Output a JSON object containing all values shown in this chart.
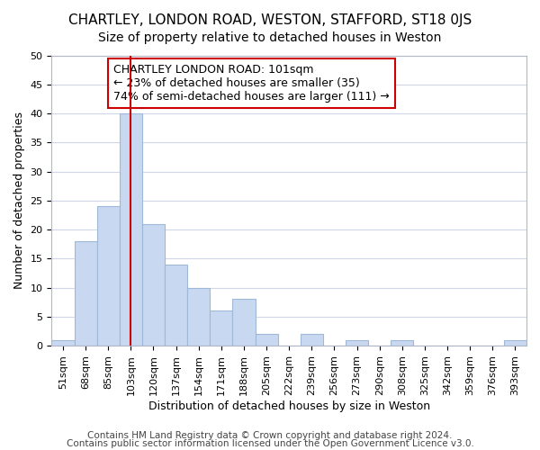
{
  "title": "CHARTLEY, LONDON ROAD, WESTON, STAFFORD, ST18 0JS",
  "subtitle": "Size of property relative to detached houses in Weston",
  "xlabel": "Distribution of detached houses by size in Weston",
  "ylabel": "Number of detached properties",
  "categories": [
    "51sqm",
    "68sqm",
    "85sqm",
    "103sqm",
    "120sqm",
    "137sqm",
    "154sqm",
    "171sqm",
    "188sqm",
    "205sqm",
    "222sqm",
    "239sqm",
    "256sqm",
    "273sqm",
    "290sqm",
    "308sqm",
    "325sqm",
    "342sqm",
    "359sqm",
    "376sqm",
    "393sqm"
  ],
  "values": [
    1,
    18,
    24,
    40,
    21,
    14,
    10,
    6,
    8,
    2,
    0,
    2,
    0,
    1,
    0,
    1,
    0,
    0,
    0,
    0,
    1
  ],
  "bar_color": "#c8d8f0",
  "bar_edge_color": "#a0b8d8",
  "vline_x": 3,
  "vline_color": "#cc0000",
  "ylim": [
    0,
    50
  ],
  "yticks": [
    0,
    5,
    10,
    15,
    20,
    25,
    30,
    35,
    40,
    45,
    50
  ],
  "annotation_title": "CHARTLEY LONDON ROAD: 101sqm",
  "annotation_line1": "← 23% of detached houses are smaller (35)",
  "annotation_line2": "74% of semi-detached houses are larger (111) →",
  "annotation_box_color": "#ffffff",
  "annotation_box_edge": "#cc0000",
  "footer1": "Contains HM Land Registry data © Crown copyright and database right 2024.",
  "footer2": "Contains public sector information licensed under the Open Government Licence v3.0.",
  "title_fontsize": 11,
  "subtitle_fontsize": 10,
  "xlabel_fontsize": 9,
  "ylabel_fontsize": 9,
  "tick_fontsize": 8,
  "annotation_fontsize": 9,
  "footer_fontsize": 7.5,
  "background_color": "#ffffff",
  "grid_color": "#d0d8e8"
}
